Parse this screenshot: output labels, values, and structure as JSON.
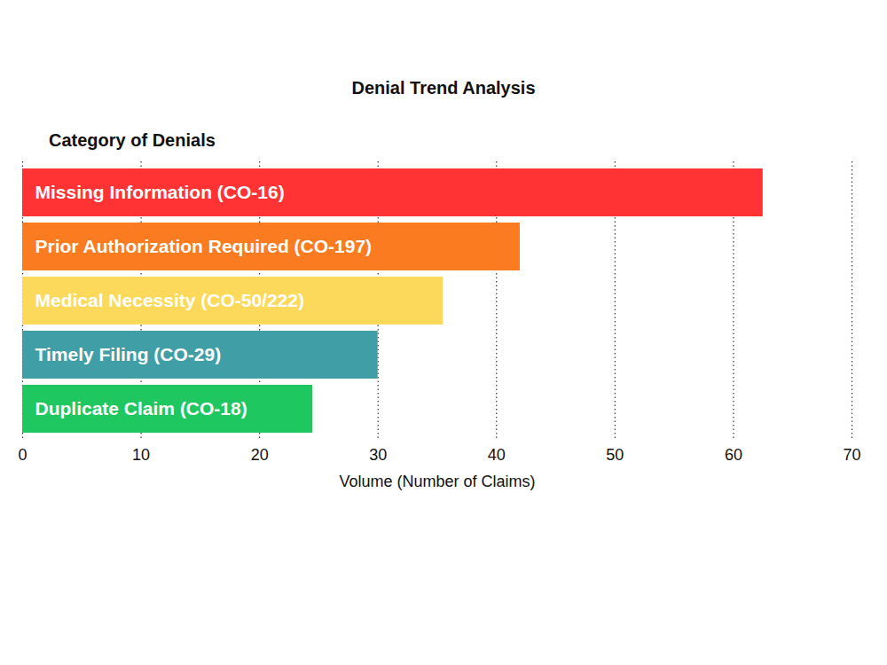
{
  "chart_data": {
    "type": "bar",
    "orientation": "horizontal",
    "title": "Denial Trend Analysis",
    "ylabel": "Category of Denials",
    "xlabel": "Volume (Number of Claims)",
    "categories": [
      "Missing Information (CO-16)",
      "Prior Authorization Required (CO-197)",
      "Medical Necessity (CO-50/222)",
      "Timely Filing (CO-29)",
      "Duplicate Claim (CO-18)"
    ],
    "values": [
      62.5,
      42,
      35.5,
      30,
      24.5
    ],
    "colors": [
      "#ff3333",
      "#fb7b21",
      "#fcd95b",
      "#3f9ea6",
      "#1ec760"
    ],
    "xlim": [
      0,
      70
    ],
    "xticks": [
      0,
      10,
      20,
      30,
      40,
      50,
      60,
      70
    ],
    "grid": true
  }
}
